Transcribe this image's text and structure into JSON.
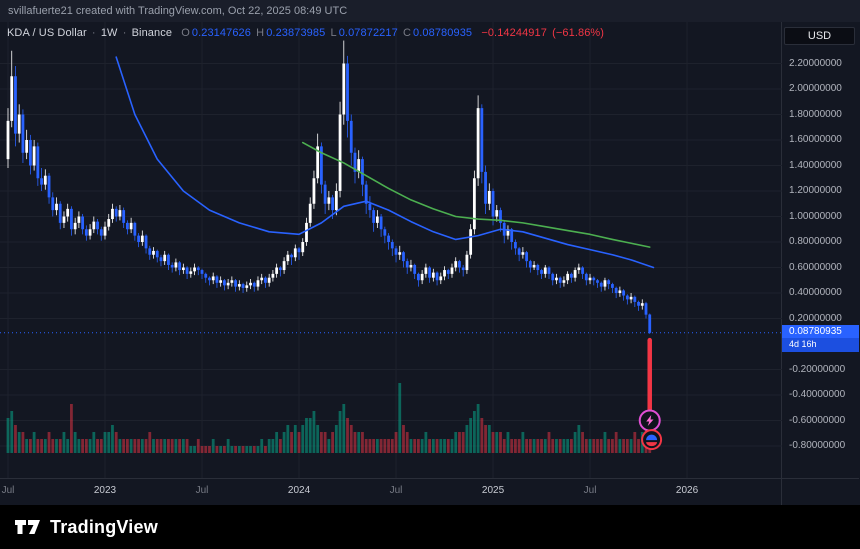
{
  "topbar": {
    "attribution": "svillafuerte21 created with TradingView.com, Oct 22, 2025 08:49 UTC"
  },
  "legend": {
    "symbol": "KDA / US Dollar",
    "sep": "·",
    "interval": "1W",
    "exchange": "Binance",
    "o_label": "O",
    "o": "0.23147626",
    "h_label": "H",
    "h": "0.23873985",
    "l_label": "L",
    "l": "0.07872217",
    "c_label": "C",
    "c": "0.08780935",
    "change_abs": "−0.14244917",
    "change_pct": "(−61.86%)"
  },
  "price_axis": {
    "currency": "USD",
    "last_price_label": "0.08780935",
    "countdown": "4d 16h",
    "last_price": 0.0878,
    "ticks": [
      {
        "label": "2.20000000",
        "price": 2.2
      },
      {
        "label": "2.00000000",
        "price": 2.0
      },
      {
        "label": "1.80000000",
        "price": 1.8
      },
      {
        "label": "1.60000000",
        "price": 1.6
      },
      {
        "label": "1.40000000",
        "price": 1.4
      },
      {
        "label": "1.20000000",
        "price": 1.2
      },
      {
        "label": "1.00000000",
        "price": 1.0
      },
      {
        "label": "0.80000000",
        "price": 0.8
      },
      {
        "label": "0.60000000",
        "price": 0.6
      },
      {
        "label": "0.40000000",
        "price": 0.4
      },
      {
        "label": "0.20000000",
        "price": 0.2
      },
      {
        "label": "-0.20000000",
        "price": -0.2
      },
      {
        "label": "-0.40000000",
        "price": -0.4
      },
      {
        "label": "-0.60000000",
        "price": -0.6
      },
      {
        "label": "-0.80000000",
        "price": -0.8
      }
    ]
  },
  "time_axis": {
    "labels": [
      {
        "text": "Jul",
        "week": 0,
        "type": "month"
      },
      {
        "text": "2023",
        "week": 26,
        "type": "year"
      },
      {
        "text": "Jul",
        "week": 52,
        "type": "month"
      },
      {
        "text": "2024",
        "week": 78,
        "type": "year"
      },
      {
        "text": "Jul",
        "week": 104,
        "type": "month"
      },
      {
        "text": "2025",
        "week": 130,
        "type": "year"
      },
      {
        "text": "Jul",
        "week": 156,
        "type": "month"
      },
      {
        "text": "2026",
        "week": 182,
        "type": "year"
      }
    ]
  },
  "footer": {
    "brand": "TradingView"
  },
  "colors": {
    "background": "#131722",
    "grid": "#1e222d",
    "up": "#ffffff",
    "down": "#2962ff",
    "accent": "#2962ff",
    "negative": "#f23645",
    "ma_fast": "#2962ff",
    "ma_slow": "#4caf50",
    "volume_up": "rgba(8,153,129,0.6)",
    "volume_down": "rgba(242,54,69,0.5)",
    "badge_bg": "#2962ff",
    "sticker_ring_1": "#e04fd4",
    "sticker_ring_2": "#f23645"
  },
  "chart_data": {
    "type": "candlestick",
    "title": "KDA / US Dollar · 1W · Binance",
    "interval": "1W",
    "ylim": [
      -0.87,
      2.52
    ],
    "grid": true,
    "last_close": 0.08780935,
    "candles": [
      [
        1.45,
        1.85,
        1.38,
        1.75
      ],
      [
        1.75,
        2.3,
        1.7,
        2.1
      ],
      [
        2.1,
        2.18,
        1.55,
        1.65
      ],
      [
        1.65,
        1.88,
        1.58,
        1.8
      ],
      [
        1.8,
        1.84,
        1.42,
        1.5
      ],
      [
        1.5,
        1.68,
        1.45,
        1.6
      ],
      [
        1.6,
        1.64,
        1.33,
        1.4
      ],
      [
        1.4,
        1.6,
        1.36,
        1.55
      ],
      [
        1.55,
        1.58,
        1.24,
        1.3
      ],
      [
        1.3,
        1.38,
        1.2,
        1.25
      ],
      [
        1.25,
        1.37,
        1.21,
        1.32
      ],
      [
        1.32,
        1.34,
        1.1,
        1.15
      ],
      [
        1.15,
        1.19,
        1.0,
        1.05
      ],
      [
        1.05,
        1.15,
        1.01,
        1.1
      ],
      [
        1.1,
        1.12,
        0.9,
        0.95
      ],
      [
        0.95,
        1.04,
        0.91,
        1.0
      ],
      [
        1.0,
        1.1,
        0.96,
        1.06
      ],
      [
        1.06,
        1.08,
        0.85,
        0.9
      ],
      [
        0.9,
        0.99,
        0.86,
        0.95
      ],
      [
        0.95,
        1.04,
        0.91,
        1.0
      ],
      [
        1.0,
        1.02,
        0.86,
        0.9
      ],
      [
        0.9,
        0.93,
        0.81,
        0.85
      ],
      [
        0.85,
        0.94,
        0.82,
        0.9
      ],
      [
        0.9,
        1.0,
        0.87,
        0.96
      ],
      [
        0.96,
        0.98,
        0.86,
        0.9
      ],
      [
        0.9,
        0.92,
        0.81,
        0.85
      ],
      [
        0.85,
        0.96,
        0.82,
        0.92
      ],
      [
        0.92,
        1.02,
        0.89,
        0.98
      ],
      [
        0.98,
        1.1,
        0.95,
        1.06
      ],
      [
        1.06,
        1.08,
        0.96,
        1.0
      ],
      [
        1.0,
        1.09,
        0.97,
        1.05
      ],
      [
        1.05,
        1.07,
        0.91,
        0.95
      ],
      [
        0.95,
        0.97,
        0.86,
        0.9
      ],
      [
        0.9,
        0.99,
        0.87,
        0.95
      ],
      [
        0.95,
        0.96,
        0.81,
        0.85
      ],
      [
        0.85,
        0.87,
        0.76,
        0.8
      ],
      [
        0.8,
        0.89,
        0.77,
        0.85
      ],
      [
        0.85,
        0.86,
        0.71,
        0.75
      ],
      [
        0.75,
        0.77,
        0.66,
        0.7
      ],
      [
        0.7,
        0.76,
        0.67,
        0.73
      ],
      [
        0.73,
        0.74,
        0.64,
        0.68
      ],
      [
        0.68,
        0.7,
        0.61,
        0.65
      ],
      [
        0.65,
        0.73,
        0.62,
        0.7
      ],
      [
        0.7,
        0.71,
        0.58,
        0.62
      ],
      [
        0.62,
        0.64,
        0.56,
        0.6
      ],
      [
        0.6,
        0.67,
        0.57,
        0.64
      ],
      [
        0.64,
        0.65,
        0.54,
        0.58
      ],
      [
        0.58,
        0.63,
        0.55,
        0.6
      ],
      [
        0.6,
        0.61,
        0.51,
        0.55
      ],
      [
        0.55,
        0.6,
        0.52,
        0.57
      ],
      [
        0.57,
        0.63,
        0.54,
        0.6
      ],
      [
        0.6,
        0.61,
        0.54,
        0.58
      ],
      [
        0.58,
        0.59,
        0.51,
        0.55
      ],
      [
        0.55,
        0.56,
        0.48,
        0.52
      ],
      [
        0.52,
        0.53,
        0.46,
        0.5
      ],
      [
        0.5,
        0.56,
        0.47,
        0.53
      ],
      [
        0.53,
        0.54,
        0.44,
        0.48
      ],
      [
        0.48,
        0.53,
        0.45,
        0.5
      ],
      [
        0.5,
        0.51,
        0.42,
        0.46
      ],
      [
        0.46,
        0.51,
        0.43,
        0.48
      ],
      [
        0.48,
        0.53,
        0.45,
        0.5
      ],
      [
        0.5,
        0.51,
        0.41,
        0.45
      ],
      [
        0.45,
        0.5,
        0.42,
        0.47
      ],
      [
        0.47,
        0.48,
        0.4,
        0.44
      ],
      [
        0.44,
        0.49,
        0.41,
        0.46
      ],
      [
        0.46,
        0.51,
        0.43,
        0.48
      ],
      [
        0.48,
        0.49,
        0.41,
        0.45
      ],
      [
        0.45,
        0.53,
        0.42,
        0.5
      ],
      [
        0.5,
        0.55,
        0.47,
        0.52
      ],
      [
        0.52,
        0.53,
        0.44,
        0.48
      ],
      [
        0.48,
        0.55,
        0.45,
        0.52
      ],
      [
        0.52,
        0.58,
        0.49,
        0.55
      ],
      [
        0.55,
        0.63,
        0.52,
        0.6
      ],
      [
        0.6,
        0.61,
        0.53,
        0.58
      ],
      [
        0.58,
        0.68,
        0.55,
        0.65
      ],
      [
        0.65,
        0.73,
        0.62,
        0.7
      ],
      [
        0.7,
        0.71,
        0.62,
        0.68
      ],
      [
        0.68,
        0.78,
        0.65,
        0.75
      ],
      [
        0.75,
        0.76,
        0.66,
        0.72
      ],
      [
        0.72,
        0.83,
        0.69,
        0.8
      ],
      [
        0.8,
        0.99,
        0.77,
        0.95
      ],
      [
        0.95,
        1.15,
        0.92,
        1.1
      ],
      [
        1.1,
        1.36,
        1.06,
        1.3
      ],
      [
        1.3,
        1.65,
        1.26,
        1.55
      ],
      [
        1.55,
        1.58,
        1.18,
        1.25
      ],
      [
        1.25,
        1.28,
        1.02,
        1.1
      ],
      [
        1.1,
        1.2,
        1.05,
        1.15
      ],
      [
        1.15,
        1.17,
        0.98,
        1.05
      ],
      [
        1.05,
        1.26,
        1.01,
        1.2
      ],
      [
        1.2,
        1.9,
        1.15,
        1.8
      ],
      [
        1.8,
        2.38,
        1.72,
        2.2
      ],
      [
        2.2,
        2.26,
        1.62,
        1.75
      ],
      [
        1.75,
        1.8,
        1.4,
        1.5
      ],
      [
        1.5,
        1.54,
        1.26,
        1.35
      ],
      [
        1.35,
        1.52,
        1.3,
        1.45
      ],
      [
        1.45,
        1.47,
        1.16,
        1.25
      ],
      [
        1.25,
        1.28,
        1.02,
        1.1
      ],
      [
        1.1,
        1.16,
        0.99,
        1.05
      ],
      [
        1.05,
        1.07,
        0.88,
        0.95
      ],
      [
        0.95,
        1.05,
        0.91,
        1.0
      ],
      [
        1.0,
        1.02,
        0.84,
        0.9
      ],
      [
        0.9,
        0.92,
        0.79,
        0.85
      ],
      [
        0.85,
        0.87,
        0.74,
        0.8
      ],
      [
        0.8,
        0.82,
        0.69,
        0.75
      ],
      [
        0.75,
        0.77,
        0.64,
        0.7
      ],
      [
        0.7,
        0.77,
        0.66,
        0.72
      ],
      [
        0.72,
        0.73,
        0.6,
        0.65
      ],
      [
        0.65,
        0.67,
        0.55,
        0.6
      ],
      [
        0.6,
        0.66,
        0.57,
        0.62
      ],
      [
        0.62,
        0.63,
        0.51,
        0.55
      ],
      [
        0.55,
        0.56,
        0.45,
        0.5
      ],
      [
        0.5,
        0.58,
        0.47,
        0.55
      ],
      [
        0.55,
        0.63,
        0.52,
        0.6
      ],
      [
        0.6,
        0.61,
        0.48,
        0.52
      ],
      [
        0.52,
        0.59,
        0.49,
        0.56
      ],
      [
        0.56,
        0.57,
        0.46,
        0.5
      ],
      [
        0.5,
        0.56,
        0.47,
        0.53
      ],
      [
        0.53,
        0.61,
        0.5,
        0.58
      ],
      [
        0.58,
        0.59,
        0.51,
        0.55
      ],
      [
        0.55,
        0.63,
        0.52,
        0.6
      ],
      [
        0.6,
        0.68,
        0.57,
        0.65
      ],
      [
        0.65,
        0.66,
        0.56,
        0.6
      ],
      [
        0.6,
        0.62,
        0.53,
        0.58
      ],
      [
        0.58,
        0.73,
        0.55,
        0.7
      ],
      [
        0.7,
        0.94,
        0.67,
        0.9
      ],
      [
        0.9,
        1.36,
        0.86,
        1.3
      ],
      [
        1.3,
        1.95,
        1.24,
        1.85
      ],
      [
        1.85,
        1.88,
        1.26,
        1.35
      ],
      [
        1.35,
        1.4,
        1.02,
        1.1
      ],
      [
        1.1,
        1.26,
        1.05,
        1.2
      ],
      [
        1.2,
        1.22,
        0.93,
        1.0
      ],
      [
        1.0,
        1.09,
        0.96,
        1.05
      ],
      [
        1.05,
        1.07,
        0.88,
        0.95
      ],
      [
        0.95,
        0.97,
        0.79,
        0.85
      ],
      [
        0.85,
        0.93,
        0.82,
        0.9
      ],
      [
        0.9,
        0.91,
        0.74,
        0.8
      ],
      [
        0.8,
        0.82,
        0.7,
        0.75
      ],
      [
        0.75,
        0.76,
        0.65,
        0.7
      ],
      [
        0.7,
        0.76,
        0.67,
        0.72
      ],
      [
        0.72,
        0.73,
        0.6,
        0.65
      ],
      [
        0.65,
        0.66,
        0.56,
        0.6
      ],
      [
        0.6,
        0.65,
        0.58,
        0.62
      ],
      [
        0.62,
        0.63,
        0.54,
        0.58
      ],
      [
        0.58,
        0.59,
        0.51,
        0.55
      ],
      [
        0.55,
        0.62,
        0.52,
        0.6
      ],
      [
        0.6,
        0.61,
        0.51,
        0.55
      ],
      [
        0.55,
        0.56,
        0.46,
        0.5
      ],
      [
        0.5,
        0.55,
        0.47,
        0.52
      ],
      [
        0.52,
        0.53,
        0.44,
        0.48
      ],
      [
        0.48,
        0.53,
        0.45,
        0.5
      ],
      [
        0.5,
        0.57,
        0.47,
        0.55
      ],
      [
        0.55,
        0.56,
        0.48,
        0.52
      ],
      [
        0.52,
        0.6,
        0.49,
        0.58
      ],
      [
        0.58,
        0.63,
        0.55,
        0.6
      ],
      [
        0.6,
        0.61,
        0.51,
        0.55
      ],
      [
        0.55,
        0.56,
        0.46,
        0.5
      ],
      [
        0.5,
        0.55,
        0.47,
        0.52
      ],
      [
        0.52,
        0.53,
        0.46,
        0.5
      ],
      [
        0.5,
        0.51,
        0.44,
        0.48
      ],
      [
        0.48,
        0.49,
        0.41,
        0.45
      ],
      [
        0.45,
        0.52,
        0.42,
        0.5
      ],
      [
        0.5,
        0.51,
        0.43,
        0.47
      ],
      [
        0.47,
        0.48,
        0.4,
        0.44
      ],
      [
        0.44,
        0.45,
        0.36,
        0.4
      ],
      [
        0.4,
        0.45,
        0.37,
        0.42
      ],
      [
        0.42,
        0.43,
        0.34,
        0.38
      ],
      [
        0.38,
        0.39,
        0.31,
        0.35
      ],
      [
        0.35,
        0.4,
        0.32,
        0.37
      ],
      [
        0.37,
        0.38,
        0.29,
        0.33
      ],
      [
        0.33,
        0.34,
        0.26,
        0.3
      ],
      [
        0.3,
        0.35,
        0.27,
        0.32
      ],
      [
        0.32,
        0.33,
        0.2,
        0.23
      ],
      [
        0.2315,
        0.2387,
        0.0787,
        0.0878
      ]
    ],
    "volume": [
      5,
      6,
      4,
      3,
      3,
      2,
      2,
      3,
      2,
      2,
      2,
      3,
      2,
      2,
      2,
      3,
      2,
      7,
      3,
      2,
      2,
      2,
      2,
      3,
      2,
      2,
      3,
      3,
      4,
      3,
      2,
      2,
      2,
      2,
      2,
      2,
      2,
      2,
      3,
      2,
      2,
      2,
      2,
      2,
      2,
      2,
      2,
      2,
      2,
      1,
      1,
      2,
      1,
      1,
      1,
      2,
      1,
      1,
      1,
      2,
      1,
      1,
      1,
      1,
      1,
      1,
      1,
      1,
      2,
      1,
      2,
      2,
      3,
      2,
      3,
      4,
      3,
      4,
      3,
      4,
      5,
      5,
      6,
      4,
      3,
      3,
      2,
      3,
      4,
      6,
      7,
      5,
      4,
      3,
      3,
      3,
      2,
      2,
      2,
      2,
      2,
      2,
      2,
      2,
      3,
      10,
      4,
      3,
      2,
      2,
      2,
      2,
      3,
      2,
      2,
      2,
      2,
      2,
      2,
      2,
      3,
      3,
      3,
      4,
      5,
      6,
      7,
      5,
      4,
      4,
      3,
      3,
      3,
      2,
      3,
      2,
      2,
      2,
      3,
      2,
      2,
      2,
      2,
      2,
      2,
      3,
      2,
      2,
      2,
      2,
      2,
      2,
      3,
      4,
      3,
      2,
      2,
      2,
      2,
      2,
      3,
      2,
      2,
      3,
      2,
      2,
      2,
      2,
      3,
      2,
      3,
      4,
      6
    ],
    "ma_fast_blue": [
      [
        29,
        2.25
      ],
      [
        34,
        1.8
      ],
      [
        40,
        1.45
      ],
      [
        47,
        1.2
      ],
      [
        54,
        1.05
      ],
      [
        62,
        0.95
      ],
      [
        70,
        0.88
      ],
      [
        78,
        0.86
      ],
      [
        84,
        0.95
      ],
      [
        90,
        1.08
      ],
      [
        96,
        1.12
      ],
      [
        102,
        1.05
      ],
      [
        108,
        0.96
      ],
      [
        114,
        0.88
      ],
      [
        120,
        0.82
      ],
      [
        126,
        0.85
      ],
      [
        132,
        0.9
      ],
      [
        138,
        0.88
      ],
      [
        144,
        0.83
      ],
      [
        150,
        0.78
      ],
      [
        156,
        0.74
      ],
      [
        162,
        0.7
      ],
      [
        167,
        0.66
      ],
      [
        173,
        0.6
      ]
    ],
    "ma_slow_green": [
      [
        79,
        1.58
      ],
      [
        84,
        1.5
      ],
      [
        90,
        1.42
      ],
      [
        96,
        1.32
      ],
      [
        102,
        1.22
      ],
      [
        108,
        1.13
      ],
      [
        114,
        1.06
      ],
      [
        120,
        1.0
      ],
      [
        126,
        0.98
      ],
      [
        132,
        0.97
      ],
      [
        138,
        0.95
      ],
      [
        144,
        0.92
      ],
      [
        150,
        0.89
      ],
      [
        156,
        0.86
      ],
      [
        162,
        0.82
      ],
      [
        167,
        0.79
      ],
      [
        172,
        0.76
      ]
    ],
    "annotations": {
      "drop_line": {
        "week": 172,
        "price_from": 0.03,
        "price_to": -0.7
      },
      "stickers": [
        {
          "name": "lightning-sticker",
          "week": 172,
          "price": -0.6
        },
        {
          "name": "cap-sticker",
          "week": 172.5,
          "price": -0.75
        }
      ]
    }
  }
}
